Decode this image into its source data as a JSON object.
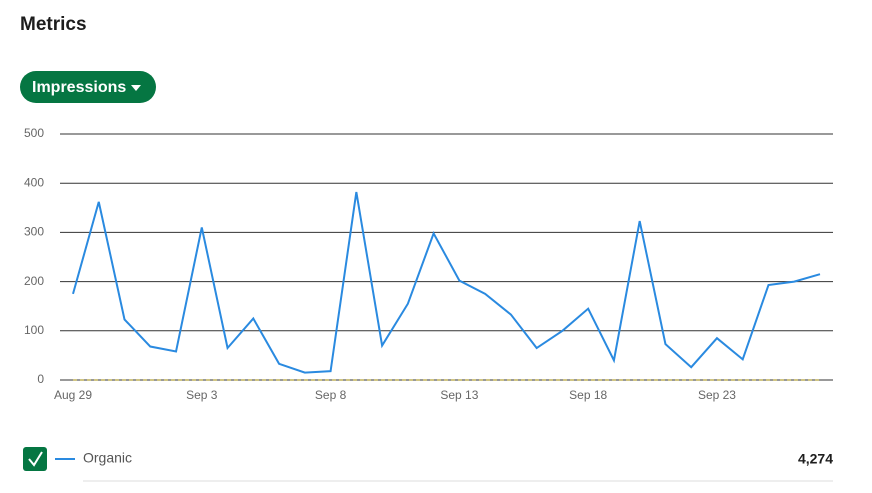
{
  "title": "Metrics",
  "dropdown": "Impressions",
  "total": "4,274",
  "chart_data": {
    "type": "line",
    "categories": [
      "Aug 29",
      null,
      null,
      null,
      null,
      "Sep 3",
      null,
      null,
      null,
      null,
      "Sep 8",
      null,
      null,
      null,
      null,
      "Sep 13",
      null,
      null,
      null,
      null,
      "Sep 18",
      null,
      null,
      null,
      null,
      "Sep 23",
      null,
      null,
      null,
      null
    ],
    "series": [
      {
        "name": "Organic",
        "color": "#2a8ae0",
        "values": [
          175,
          362,
          123,
          68,
          58,
          310,
          65,
          125,
          33,
          15,
          18,
          382,
          70,
          155,
          298,
          202,
          175,
          133,
          65,
          100,
          145,
          40,
          323,
          73,
          26,
          85,
          42,
          193,
          200,
          215
        ]
      },
      {
        "color": "#b5a23a",
        "dashed": true,
        "values": [
          0,
          0,
          0,
          0,
          0,
          0,
          0,
          0,
          0,
          0,
          0,
          0,
          0,
          0,
          0,
          0,
          0,
          0,
          0,
          0,
          0,
          0,
          0,
          0,
          0,
          0,
          0,
          0,
          0,
          0
        ]
      }
    ],
    "ylim": [
      0,
      500
    ],
    "yticks": [
      0,
      100,
      200,
      300,
      400,
      500
    ],
    "grid": true
  }
}
